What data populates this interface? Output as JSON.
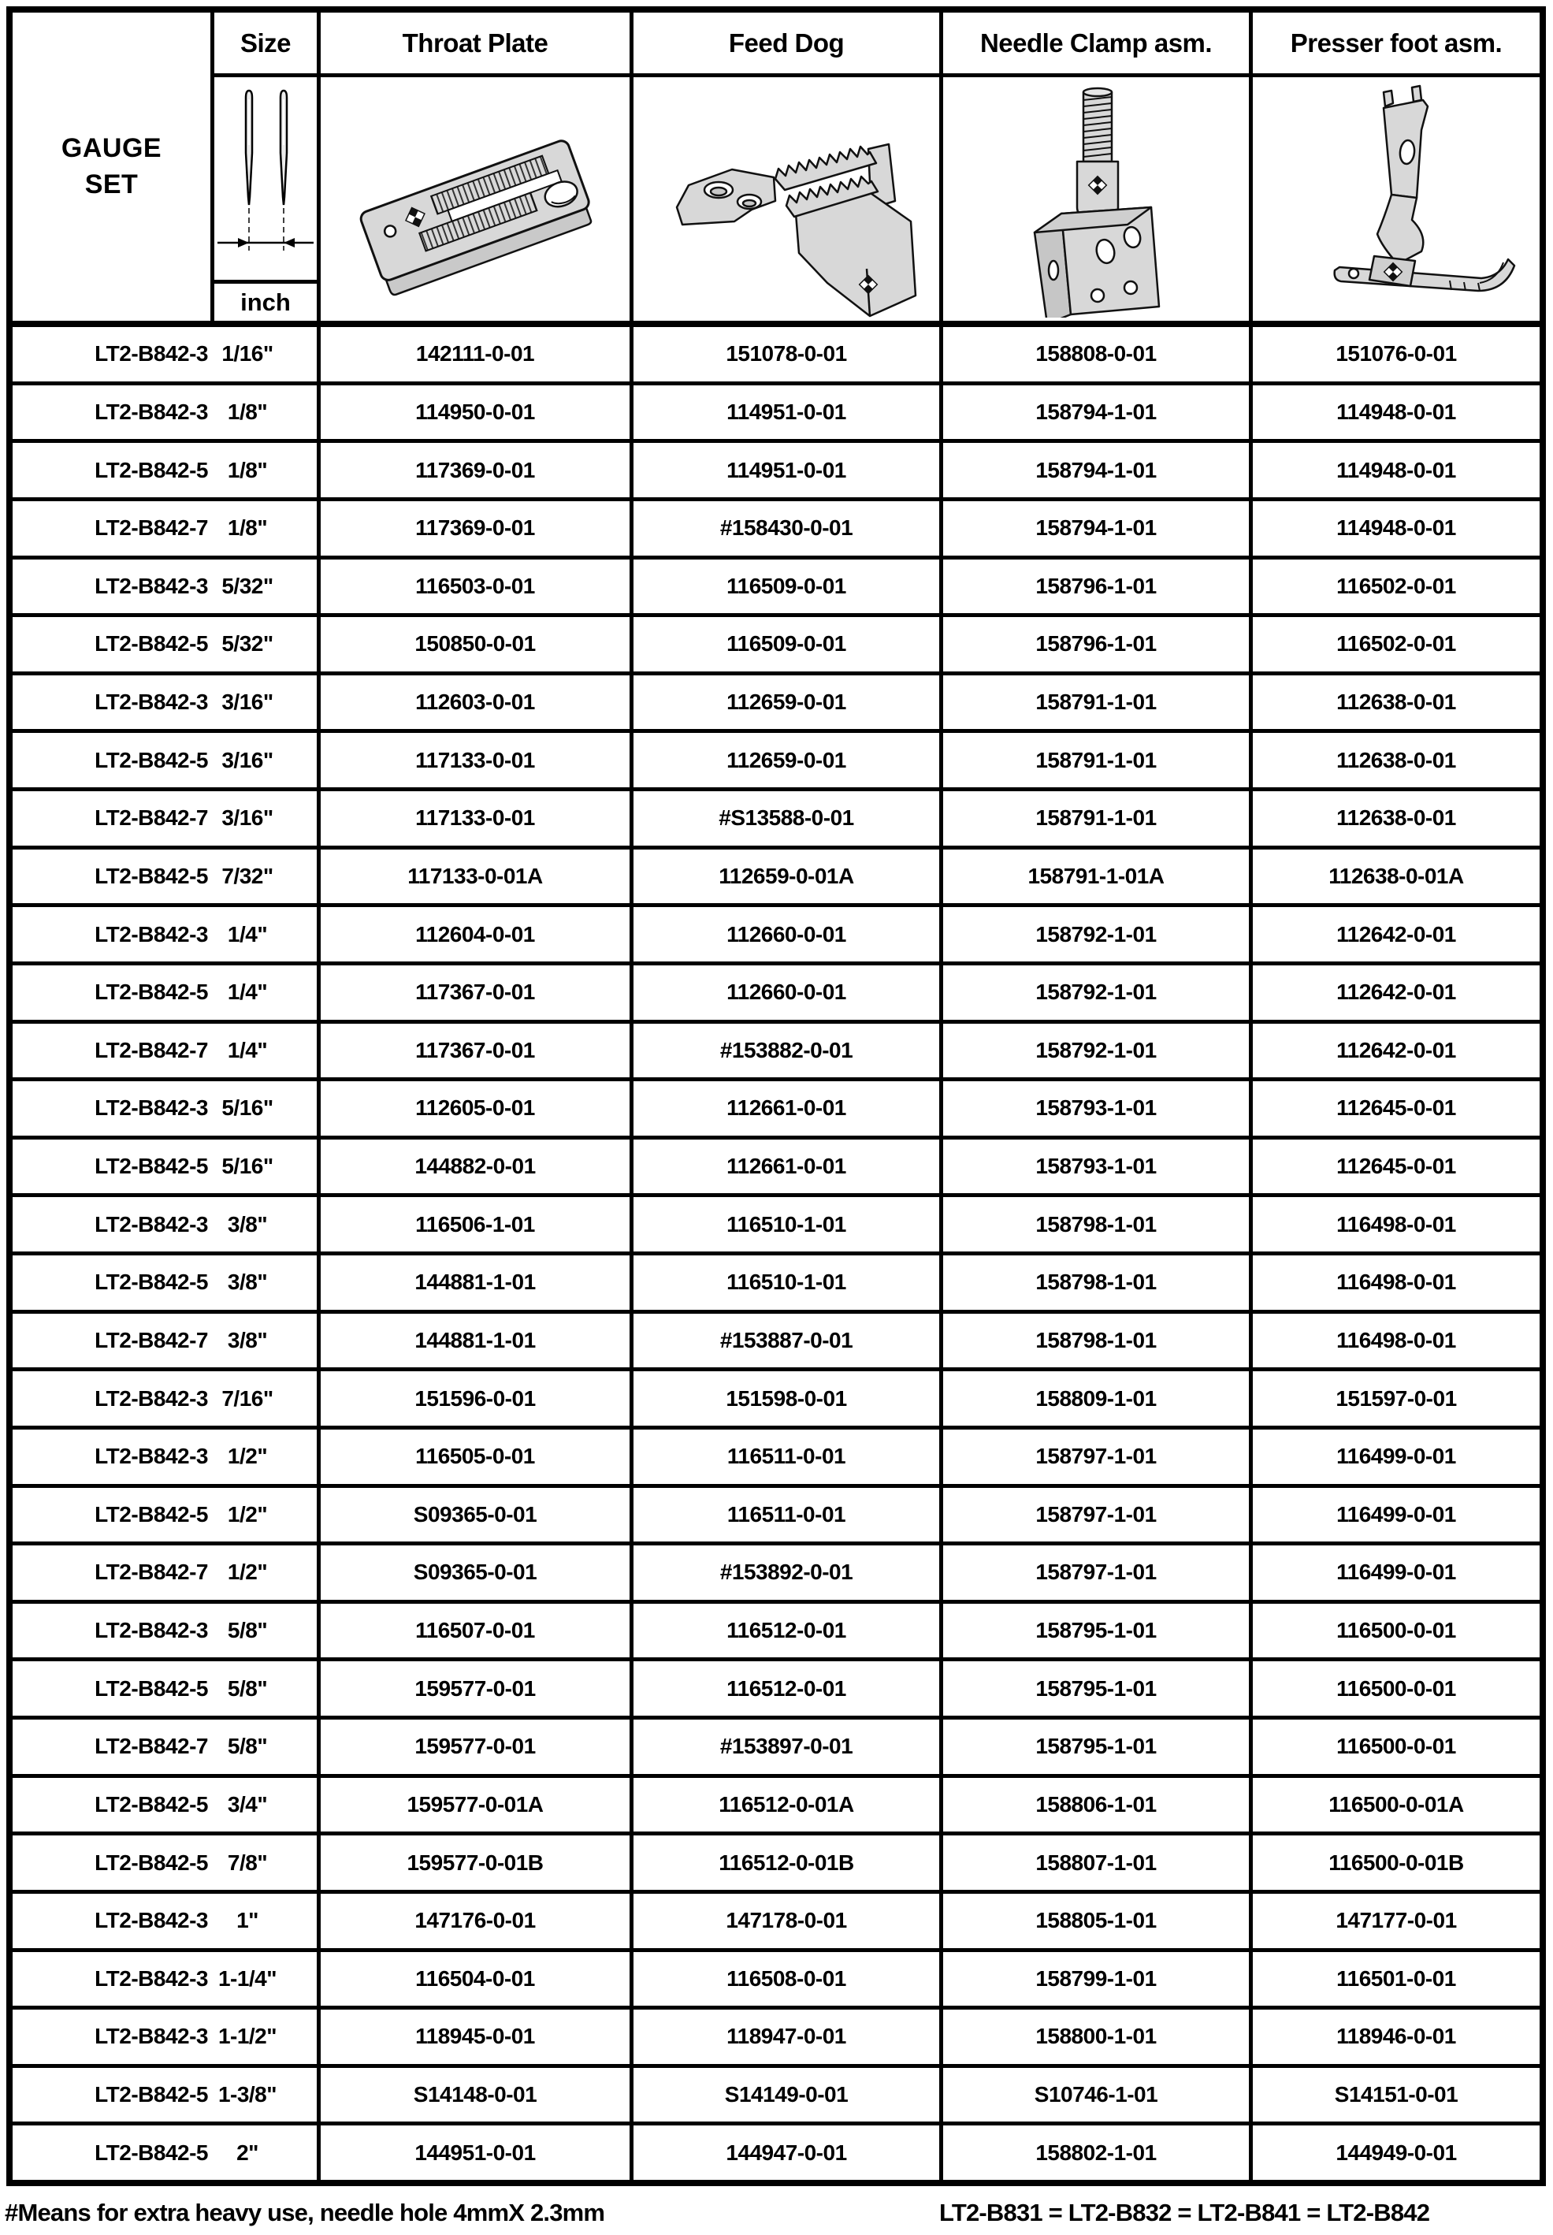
{
  "header": {
    "gauge_set_label_line1": "GAUGE",
    "gauge_set_label_line2": "SET",
    "size_label": "Size",
    "size_unit": "inch",
    "columns": {
      "throat_plate": "Throat Plate",
      "feed_dog": "Feed Dog",
      "needle_clamp": "Needle Clamp asm.",
      "presser_foot": "Presser foot asm."
    },
    "icons": {
      "size_diagram": "twin-needles-gauge-diagram",
      "throat_plate": "throat-plate-drawing",
      "feed_dog": "feed-dog-drawing",
      "needle_clamp": "needle-clamp-drawing",
      "presser_foot": "presser-foot-drawing"
    }
  },
  "rows": [
    {
      "gauge": "LT2-B842-3",
      "size": "1/16\"",
      "throat_plate": "142111-0-01",
      "feed_dog": "151078-0-01",
      "needle_clamp": "158808-0-01",
      "presser_foot": "151076-0-01"
    },
    {
      "gauge": "LT2-B842-3",
      "size": "1/8\"",
      "throat_plate": "114950-0-01",
      "feed_dog": "114951-0-01",
      "needle_clamp": "158794-1-01",
      "presser_foot": "114948-0-01"
    },
    {
      "gauge": "LT2-B842-5",
      "size": "1/8\"",
      "throat_plate": "117369-0-01",
      "feed_dog": "114951-0-01",
      "needle_clamp": "158794-1-01",
      "presser_foot": "114948-0-01"
    },
    {
      "gauge": "LT2-B842-7",
      "size": "1/8\"",
      "throat_plate": "117369-0-01",
      "feed_dog": "#158430-0-01",
      "needle_clamp": "158794-1-01",
      "presser_foot": "114948-0-01"
    },
    {
      "gauge": "LT2-B842-3",
      "size": "5/32\"",
      "throat_plate": "116503-0-01",
      "feed_dog": "116509-0-01",
      "needle_clamp": "158796-1-01",
      "presser_foot": "116502-0-01"
    },
    {
      "gauge": "LT2-B842-5",
      "size": "5/32\"",
      "throat_plate": "150850-0-01",
      "feed_dog": "116509-0-01",
      "needle_clamp": "158796-1-01",
      "presser_foot": "116502-0-01"
    },
    {
      "gauge": "LT2-B842-3",
      "size": "3/16\"",
      "throat_plate": "112603-0-01",
      "feed_dog": "112659-0-01",
      "needle_clamp": "158791-1-01",
      "presser_foot": "112638-0-01"
    },
    {
      "gauge": "LT2-B842-5",
      "size": "3/16\"",
      "throat_plate": "117133-0-01",
      "feed_dog": "112659-0-01",
      "needle_clamp": "158791-1-01",
      "presser_foot": "112638-0-01"
    },
    {
      "gauge": "LT2-B842-7",
      "size": "3/16\"",
      "throat_plate": "117133-0-01",
      "feed_dog": "#S13588-0-01",
      "needle_clamp": "158791-1-01",
      "presser_foot": "112638-0-01"
    },
    {
      "gauge": "LT2-B842-5",
      "size": "7/32\"",
      "throat_plate": "117133-0-01A",
      "feed_dog": "112659-0-01A",
      "needle_clamp": "158791-1-01A",
      "presser_foot": "112638-0-01A"
    },
    {
      "gauge": "LT2-B842-3",
      "size": "1/4\"",
      "throat_plate": "112604-0-01",
      "feed_dog": "112660-0-01",
      "needle_clamp": "158792-1-01",
      "presser_foot": "112642-0-01"
    },
    {
      "gauge": "LT2-B842-5",
      "size": "1/4\"",
      "throat_plate": "117367-0-01",
      "feed_dog": "112660-0-01",
      "needle_clamp": "158792-1-01",
      "presser_foot": "112642-0-01"
    },
    {
      "gauge": "LT2-B842-7",
      "size": "1/4\"",
      "throat_plate": "117367-0-01",
      "feed_dog": "#153882-0-01",
      "needle_clamp": "158792-1-01",
      "presser_foot": "112642-0-01"
    },
    {
      "gauge": "LT2-B842-3",
      "size": "5/16\"",
      "throat_plate": "112605-0-01",
      "feed_dog": "112661-0-01",
      "needle_clamp": "158793-1-01",
      "presser_foot": "112645-0-01"
    },
    {
      "gauge": "LT2-B842-5",
      "size": "5/16\"",
      "throat_plate": "144882-0-01",
      "feed_dog": "112661-0-01",
      "needle_clamp": "158793-1-01",
      "presser_foot": "112645-0-01"
    },
    {
      "gauge": "LT2-B842-3",
      "size": "3/8\"",
      "throat_plate": "116506-1-01",
      "feed_dog": "116510-1-01",
      "needle_clamp": "158798-1-01",
      "presser_foot": "116498-0-01"
    },
    {
      "gauge": "LT2-B842-5",
      "size": "3/8\"",
      "throat_plate": "144881-1-01",
      "feed_dog": "116510-1-01",
      "needle_clamp": "158798-1-01",
      "presser_foot": "116498-0-01"
    },
    {
      "gauge": "LT2-B842-7",
      "size": "3/8\"",
      "throat_plate": "144881-1-01",
      "feed_dog": "#153887-0-01",
      "needle_clamp": "158798-1-01",
      "presser_foot": "116498-0-01"
    },
    {
      "gauge": "LT2-B842-3",
      "size": "7/16\"",
      "throat_plate": "151596-0-01",
      "feed_dog": "151598-0-01",
      "needle_clamp": "158809-1-01",
      "presser_foot": "151597-0-01"
    },
    {
      "gauge": "LT2-B842-3",
      "size": "1/2\"",
      "throat_plate": "116505-0-01",
      "feed_dog": "116511-0-01",
      "needle_clamp": "158797-1-01",
      "presser_foot": "116499-0-01"
    },
    {
      "gauge": "LT2-B842-5",
      "size": "1/2\"",
      "throat_plate": "S09365-0-01",
      "feed_dog": "116511-0-01",
      "needle_clamp": "158797-1-01",
      "presser_foot": "116499-0-01"
    },
    {
      "gauge": "LT2-B842-7",
      "size": "1/2\"",
      "throat_plate": "S09365-0-01",
      "feed_dog": "#153892-0-01",
      "needle_clamp": "158797-1-01",
      "presser_foot": "116499-0-01"
    },
    {
      "gauge": "LT2-B842-3",
      "size": "5/8\"",
      "throat_plate": "116507-0-01",
      "feed_dog": "116512-0-01",
      "needle_clamp": "158795-1-01",
      "presser_foot": "116500-0-01"
    },
    {
      "gauge": "LT2-B842-5",
      "size": "5/8\"",
      "throat_plate": "159577-0-01",
      "feed_dog": "116512-0-01",
      "needle_clamp": "158795-1-01",
      "presser_foot": "116500-0-01"
    },
    {
      "gauge": "LT2-B842-7",
      "size": "5/8\"",
      "throat_plate": "159577-0-01",
      "feed_dog": "#153897-0-01",
      "needle_clamp": "158795-1-01",
      "presser_foot": "116500-0-01"
    },
    {
      "gauge": "LT2-B842-5",
      "size": "3/4\"",
      "throat_plate": "159577-0-01A",
      "feed_dog": "116512-0-01A",
      "needle_clamp": "158806-1-01",
      "presser_foot": "116500-0-01A"
    },
    {
      "gauge": "LT2-B842-5",
      "size": "7/8\"",
      "throat_plate": "159577-0-01B",
      "feed_dog": "116512-0-01B",
      "needle_clamp": "158807-1-01",
      "presser_foot": "116500-0-01B"
    },
    {
      "gauge": "LT2-B842-3",
      "size": "1\"",
      "throat_plate": "147176-0-01",
      "feed_dog": "147178-0-01",
      "needle_clamp": "158805-1-01",
      "presser_foot": "147177-0-01"
    },
    {
      "gauge": "LT2-B842-3",
      "size": "1-1/4\"",
      "throat_plate": "116504-0-01",
      "feed_dog": "116508-0-01",
      "needle_clamp": "158799-1-01",
      "presser_foot": "116501-0-01"
    },
    {
      "gauge": "LT2-B842-3",
      "size": "1-1/2\"",
      "throat_plate": "118945-0-01",
      "feed_dog": "118947-0-01",
      "needle_clamp": "158800-1-01",
      "presser_foot": "118946-0-01"
    },
    {
      "gauge": "LT2-B842-5",
      "size": "1-3/8\"",
      "throat_plate": "S14148-0-01",
      "feed_dog": "S14149-0-01",
      "needle_clamp": "S10746-1-01",
      "presser_foot": "S14151-0-01"
    },
    {
      "gauge": "LT2-B842-5",
      "size": "2\"",
      "throat_plate": "144951-0-01",
      "feed_dog": "144947-0-01",
      "needle_clamp": "158802-1-01",
      "presser_foot": "144949-0-01"
    }
  ],
  "footer": {
    "note_left": "#Means for extra heavy use, needle hole 4mmX 2.3mm",
    "note_right": "LT2-B831 = LT2-B832 = LT2-B841 = LT2-B842"
  }
}
